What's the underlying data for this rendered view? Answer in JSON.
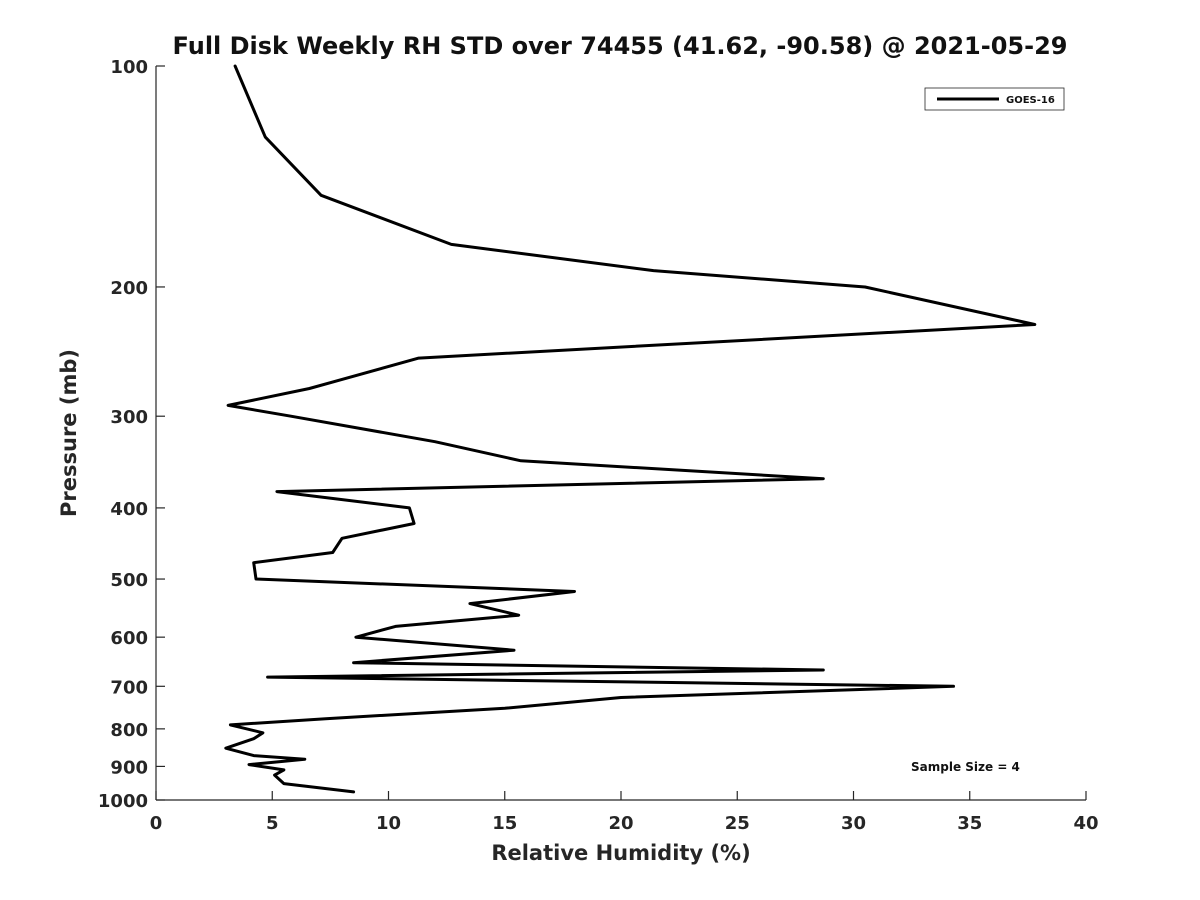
{
  "chart_data": {
    "type": "line",
    "title": "Full Disk Weekly RH STD over 74455 (41.62, -90.58) @ 2021-05-29",
    "xlabel": "Relative Humidity (%)",
    "ylabel": "Pressure (mb)",
    "xlim": [
      0,
      40
    ],
    "ylim": [
      100,
      1000
    ],
    "yscale": "log",
    "y_reversed": true,
    "grid": false,
    "legend_position": "top-right",
    "xticks": [
      0,
      5,
      10,
      15,
      20,
      25,
      30,
      35,
      40
    ],
    "yticks": [
      100,
      200,
      300,
      400,
      500,
      600,
      700,
      800,
      900,
      1000
    ],
    "annotation": "Sample Size = 4",
    "series": [
      {
        "name": "GOES-16",
        "color": "#000000",
        "points": [
          [
            3.4,
            100
          ],
          [
            4.7,
            125
          ],
          [
            7.1,
            150
          ],
          [
            12.7,
            175
          ],
          [
            21.4,
            190
          ],
          [
            30.5,
            200
          ],
          [
            37.8,
            225
          ],
          [
            11.3,
            250
          ],
          [
            6.6,
            275
          ],
          [
            3.1,
            290
          ],
          [
            5.8,
            300
          ],
          [
            12.0,
            325
          ],
          [
            15.7,
            345
          ],
          [
            28.7,
            365
          ],
          [
            5.2,
            380
          ],
          [
            10.9,
            400
          ],
          [
            11.1,
            420
          ],
          [
            8.0,
            440
          ],
          [
            7.6,
            460
          ],
          [
            4.2,
            475
          ],
          [
            4.3,
            500
          ],
          [
            18.0,
            520
          ],
          [
            13.5,
            540
          ],
          [
            15.6,
            560
          ],
          [
            10.3,
            580
          ],
          [
            8.6,
            600
          ],
          [
            15.4,
            625
          ],
          [
            8.5,
            650
          ],
          [
            28.7,
            665
          ],
          [
            4.8,
            680
          ],
          [
            34.3,
            700
          ],
          [
            20.0,
            725
          ],
          [
            15.0,
            750
          ],
          [
            7.3,
            775
          ],
          [
            3.2,
            790
          ],
          [
            4.6,
            810
          ],
          [
            4.2,
            825
          ],
          [
            3.0,
            850
          ],
          [
            4.2,
            870
          ],
          [
            6.4,
            880
          ],
          [
            4.0,
            895
          ],
          [
            5.5,
            910
          ],
          [
            5.1,
            925
          ],
          [
            5.5,
            950
          ],
          [
            8.5,
            975
          ]
        ]
      }
    ]
  }
}
